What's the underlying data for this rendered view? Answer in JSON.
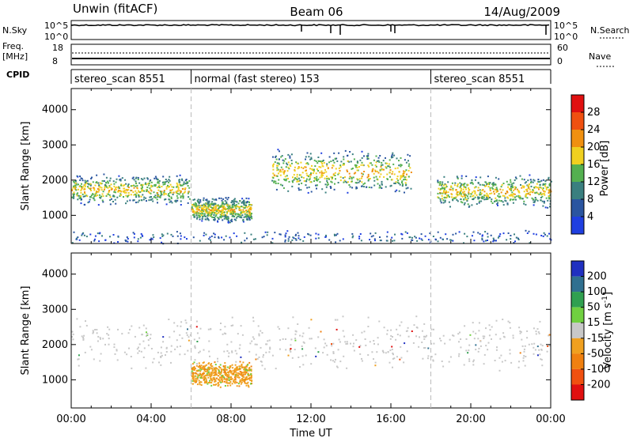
{
  "header": {
    "station": "Unwin (fitACF)",
    "beam": "Beam 06",
    "date": "14/Aug/2009"
  },
  "info_panels": {
    "nsky_label": "N.Sky",
    "nsearch_label": "N.Search",
    "nsky_ticks": [
      "10^5",
      "10^0"
    ],
    "nsearch_ticks": [
      "10^5",
      "10^0"
    ],
    "freq_label_1": "Freq.",
    "freq_label_2": "[MHz]",
    "freq_ticks": [
      "18",
      "8"
    ],
    "nave_label": "Nave",
    "nave_ticks": [
      "60",
      "0"
    ],
    "cpid_label": "CPID",
    "cpid_segments": [
      {
        "label": "stereo_scan 8551",
        "start_hour": 0,
        "end_hour": 6
      },
      {
        "label": "normal (fast stereo) 153",
        "start_hour": 6,
        "end_hour": 18
      },
      {
        "label": "stereo_scan 8551",
        "start_hour": 18,
        "end_hour": 24
      }
    ]
  },
  "chart_data": [
    {
      "type": "heatmap",
      "panel": "power",
      "ylabel": "Slant Range [km]",
      "xlabel": "",
      "ylim": [
        200,
        4600
      ],
      "xlim_hours": [
        0,
        24
      ],
      "yticks": [
        1000,
        2000,
        3000,
        4000
      ],
      "colorbar": {
        "label": "Power [dB]",
        "ticks": [
          "4",
          "8",
          "12",
          "16",
          "20",
          "24",
          "28"
        ],
        "colors": [
          "#1f3fe0",
          "#2a55a0",
          "#3a7f7f",
          "#54b050",
          "#f0d020",
          "#f09010",
          "#f05010",
          "#e01010"
        ]
      },
      "features": [
        {
          "name": "echo band",
          "hour_start": 0.0,
          "hour_end": 5.9,
          "range_low_km": 1300,
          "range_high_km": 2200
        },
        {
          "name": "echo band",
          "hour_start": 6.0,
          "hour_end": 9.0,
          "range_low_km": 800,
          "range_high_km": 1550
        },
        {
          "name": "echo band",
          "hour_start": 10.0,
          "hour_end": 17.0,
          "range_low_km": 1600,
          "range_high_km": 2900
        },
        {
          "name": "echo band",
          "hour_start": 18.3,
          "hour_end": 24.0,
          "range_low_km": 1200,
          "range_high_km": 2200
        },
        {
          "name": "ground scatter",
          "hour_start": 0.0,
          "hour_end": 24.0,
          "range_low_km": 200,
          "range_high_km": 600
        }
      ]
    },
    {
      "type": "heatmap",
      "panel": "velocity",
      "ylabel": "Slant Range [km]",
      "xlabel": "Time UT",
      "ylim": [
        200,
        4600
      ],
      "xlim_hours": [
        0,
        24
      ],
      "yticks": [
        1000,
        2000,
        3000,
        4000
      ],
      "xticks": [
        "00:00",
        "04:00",
        "08:00",
        "12:00",
        "16:00",
        "20:00",
        "00:00"
      ],
      "colorbar": {
        "label": "Velocity [m s-1]",
        "ticks": [
          "200",
          "100",
          "50",
          "15",
          "-15",
          "-50",
          "-100",
          "-200"
        ],
        "colors": [
          "#2030c0",
          "#307090",
          "#30a050",
          "#70d040",
          "#c8c8c8",
          "#f0a020",
          "#f08010",
          "#f05010",
          "#e01010"
        ]
      },
      "features": [
        {
          "name": "ground scatter",
          "hour_start": 0.0,
          "hour_end": 24.0,
          "range_low_km": 1200,
          "range_high_km": 2900
        },
        {
          "name": "negative velocity patch",
          "hour_start": 6.0,
          "hour_end": 9.0,
          "range_low_km": 800,
          "range_high_km": 1550
        }
      ]
    }
  ]
}
